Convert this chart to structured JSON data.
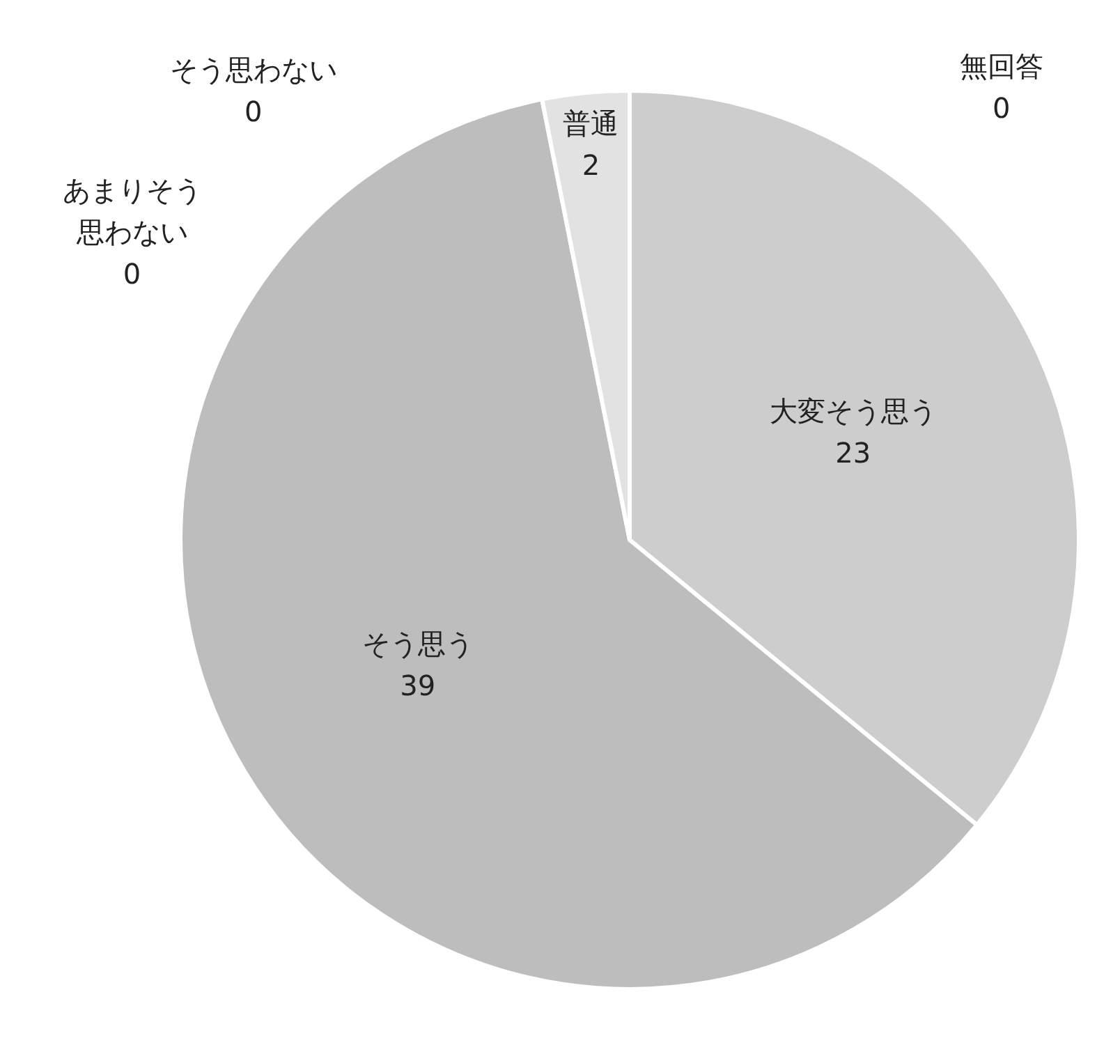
{
  "chart_data": {
    "type": "pie",
    "categories": [
      "大変そう思う",
      "そう思う",
      "普通",
      "あまりそう思わない",
      "そう思わない",
      "無回答"
    ],
    "values": [
      23,
      39,
      2,
      0,
      0,
      0
    ],
    "colors": [
      "#cdcdcd",
      "#bdbdbd",
      "#e2e2e2",
      "#a8a8a8",
      "#9a9a9a",
      "#8c8c8c"
    ],
    "value_labels": [
      "23",
      "39",
      "2",
      "0",
      "0",
      "0"
    ],
    "legend": false
  }
}
